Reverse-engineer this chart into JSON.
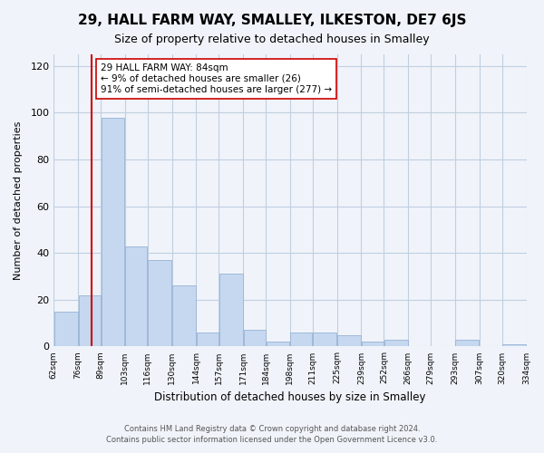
{
  "title": "29, HALL FARM WAY, SMALLEY, ILKESTON, DE7 6JS",
  "subtitle": "Size of property relative to detached houses in Smalley",
  "xlabel": "Distribution of detached houses by size in Smalley",
  "ylabel": "Number of detached properties",
  "bins": [
    62,
    76,
    89,
    103,
    116,
    130,
    144,
    157,
    171,
    184,
    198,
    211,
    225,
    239,
    252,
    266,
    279,
    293,
    307,
    320,
    334
  ],
  "bin_labels": [
    "62sqm",
    "76sqm",
    "89sqm",
    "103sqm",
    "116sqm",
    "130sqm",
    "144sqm",
    "157sqm",
    "171sqm",
    "184sqm",
    "198sqm",
    "211sqm",
    "225sqm",
    "239sqm",
    "252sqm",
    "266sqm",
    "279sqm",
    "293sqm",
    "307sqm",
    "320sqm",
    "334sqm"
  ],
  "values": [
    15,
    22,
    98,
    43,
    37,
    26,
    6,
    31,
    7,
    2,
    6,
    6,
    5,
    2,
    3,
    0,
    0,
    3,
    0,
    1
  ],
  "bar_color": "#c5d8f0",
  "bar_edge_color": "#a0b8d8",
  "property_line_x": 84,
  "property_line_color": "#cc0000",
  "annotation_text": "29 HALL FARM WAY: 84sqm\n← 9% of detached houses are smaller (26)\n91% of semi-detached houses are larger (277) →",
  "annotation_box_color": "white",
  "annotation_box_edge_color": "#cc0000",
  "ylim": [
    0,
    125
  ],
  "yticks": [
    0,
    20,
    40,
    60,
    80,
    100,
    120
  ],
  "grid_color": "#c0cfe0",
  "background_color": "#f0f4fa",
  "footer_line1": "Contains HM Land Registry data © Crown copyright and database right 2024.",
  "footer_line2": "Contains public sector information licensed under the Open Government Licence v3.0."
}
